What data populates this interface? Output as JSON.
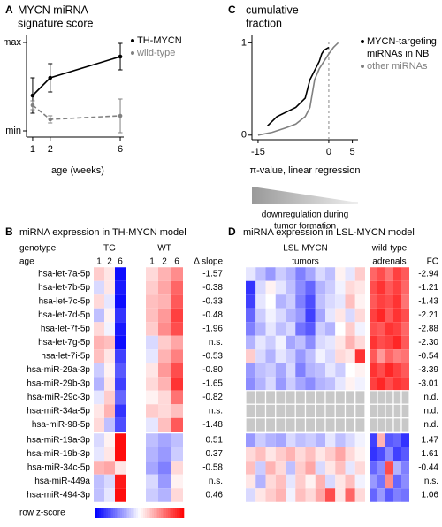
{
  "chart_data": [
    {
      "type": "line",
      "label": "A",
      "title": [
        "MYCN miRNA",
        "signature score"
      ],
      "xlabel": "age (weeks)",
      "x": [
        1,
        2,
        6
      ],
      "xlim": [
        0.65,
        6.2
      ],
      "xticks": [
        1,
        2,
        6
      ],
      "ylim": [
        -0.07,
        1.08
      ],
      "yticks": [
        {
          "value": 0,
          "label": "min"
        },
        {
          "value": 1,
          "label": "max"
        }
      ],
      "series": [
        {
          "name": [
            "TH-MYCN"
          ],
          "color": "#000000",
          "linestyle": "solid",
          "values": [
            0.4,
            0.6,
            0.84
          ],
          "errors": [
            0.2,
            0.16,
            0.15
          ]
        },
        {
          "name": [
            "wild-type"
          ],
          "color": "#808080",
          "linestyle": "dashed",
          "values": [
            0.29,
            0.13,
            0.17
          ],
          "errors": [
            0.05,
            0.04,
            0.19
          ]
        }
      ]
    },
    {
      "type": "line",
      "label": "C",
      "title": [
        "cumulative",
        "fraction"
      ],
      "xlabel": "π-value, linear regression",
      "xlim": [
        -16.3,
        6.2
      ],
      "xticks": [
        -15,
        0,
        5
      ],
      "ylim": [
        -0.05,
        1.08
      ],
      "yticks": [
        0,
        1
      ],
      "vline": 0,
      "annotation": [
        "downregulation during",
        "tumor formation"
      ],
      "series": [
        {
          "name": [
            "MYCN-targeting",
            "miRNAs in NB"
          ],
          "color": "#000000",
          "linestyle": "solid",
          "x": [
            -13,
            -11,
            -9,
            -7,
            -6,
            -5,
            -4.5,
            -4,
            -3,
            -2.5,
            -2,
            -1.5,
            -1,
            0
          ],
          "values": [
            0.1,
            0.2,
            0.25,
            0.3,
            0.35,
            0.4,
            0.5,
            0.6,
            0.7,
            0.75,
            0.8,
            0.88,
            0.92,
            0.95
          ]
        },
        {
          "name": [
            "other miRNAs"
          ],
          "color": "#808080",
          "linestyle": "solid",
          "x": [
            -15,
            -12,
            -9,
            -7,
            -5,
            -4,
            -3.5,
            -3,
            -2,
            -1,
            0,
            1,
            2
          ],
          "values": [
            0,
            0.03,
            0.08,
            0.12,
            0.2,
            0.3,
            0.45,
            0.6,
            0.72,
            0.8,
            0.88,
            0.95,
            1
          ]
        }
      ]
    }
  ],
  "heatmaps": [
    {
      "label": "B",
      "title": "miRNA expression in TH-MYCN model",
      "genotype_label": "genotype",
      "age_label": "age",
      "stat_label": "Δ slope",
      "groups": [
        {
          "name": [
            "TG"
          ],
          "ages": [
            "1",
            "2",
            "6"
          ]
        },
        {
          "name": [
            "WT"
          ],
          "ages": [
            "1",
            "2",
            "6"
          ]
        }
      ],
      "colorbar": {
        "label": "row z-score",
        "zlim": [
          -2,
          2
        ]
      },
      "blocks": [
        [
          {
            "name": "hsa-let-7a-5p",
            "values": [
              [
                0.4,
                0.2,
                -1.9
              ],
              [
                0.3,
                0.6,
                0.9
              ]
            ],
            "stat": "-1.57"
          },
          {
            "name": "hsa-let-7b-5p",
            "values": [
              [
                -0.3,
                0.2,
                -1.8
              ],
              [
                0.4,
                0.7,
                1.2
              ]
            ],
            "stat": "-0.38"
          },
          {
            "name": "hsa-let-7c-5p",
            "values": [
              [
                0.3,
                -0.2,
                -1.9
              ],
              [
                0.5,
                0.6,
                1.3
              ]
            ],
            "stat": "-0.33"
          },
          {
            "name": "hsa-let-7d-5p",
            "values": [
              [
                -0.5,
                0.1,
                -1.6
              ],
              [
                0.5,
                0.8,
                1.5
              ]
            ],
            "stat": "-0.48"
          },
          {
            "name": "hsa-let-7f-5p",
            "values": [
              [
                0.3,
                -0.1,
                -1.8
              ],
              [
                0.4,
                0.9,
                1.4
              ]
            ],
            "stat": "-1.96"
          },
          {
            "name": "hsa-let-7g-5p",
            "values": [
              [
                0.6,
                0.5,
                -1.9
              ],
              [
                -0.3,
                0.4,
                0.7
              ]
            ],
            "stat": "n.s."
          },
          {
            "name": "hsa-let-7i-5p",
            "values": [
              [
                0.5,
                0.2,
                -1.5
              ],
              [
                -0.2,
                0.6,
                1.0
              ]
            ],
            "stat": "-0.53"
          },
          {
            "name": "hsa-miR-29a-3p",
            "values": [
              [
                -0.4,
                0.1,
                -1.3
              ],
              [
                0.2,
                0.8,
                1.4
              ]
            ],
            "stat": "-0.80"
          },
          {
            "name": "hsa-miR-29b-3p",
            "values": [
              [
                -0.6,
                0.2,
                -1.5
              ],
              [
                0.3,
                0.6,
                1.6
              ]
            ],
            "stat": "-1.65"
          },
          {
            "name": "hsa-miR-29c-3p",
            "values": [
              [
                -0.2,
                0.4,
                -1.2
              ],
              [
                0.1,
                0.3,
                1.1
              ]
            ],
            "stat": "-0.82"
          },
          {
            "name": "hsa-miR-34a-5p",
            "values": [
              [
                0.2,
                0.6,
                -1.6
              ],
              [
                0.4,
                0.3,
                0.5
              ]
            ],
            "stat": "n.s."
          },
          {
            "name": "hsa-miR-98-5p",
            "values": [
              [
                0.3,
                -0.5,
                -1.4
              ],
              [
                -0.2,
                0.5,
                1.3
              ]
            ],
            "stat": "-1.48"
          }
        ],
        [
          {
            "name": "hsa-miR-19a-3p",
            "values": [
              [
                -0.3,
                0.1,
                1.9
              ],
              [
                -0.5,
                -0.7,
                -0.5
              ]
            ],
            "stat": "0.51"
          },
          {
            "name": "hsa-miR-19b-3p",
            "values": [
              [
                -0.2,
                0.2,
                1.9
              ],
              [
                -0.6,
                -0.8,
                -0.4
              ]
            ],
            "stat": "0.37"
          },
          {
            "name": "hsa-miR-34c-5p",
            "values": [
              [
                0.6,
                0.7,
                0.2
              ],
              [
                -0.7,
                -1.0,
                0.3
              ]
            ],
            "stat": "-0.58"
          },
          {
            "name": "hsa-miR-449a",
            "values": [
              [
                -0.5,
                -0.3,
                1.8
              ],
              [
                -0.3,
                -0.8,
                0.1
              ]
            ],
            "stat": "n.s."
          },
          {
            "name": "hsa-miR-494-3p",
            "values": [
              [
                -0.5,
                -0.2,
                1.9
              ],
              [
                -0.4,
                -0.6,
                0.3
              ]
            ],
            "stat": "0.46"
          }
        ]
      ]
    },
    {
      "label": "D",
      "title": "miRNA expression in LSL-MYCN model",
      "stat_label": "FC",
      "groups": [
        {
          "name": [
            "LSL-MYCN",
            "tumors"
          ]
        },
        {
          "name": [
            "wild-type",
            "adrenals"
          ]
        }
      ],
      "zlim": [
        -2,
        2
      ],
      "blocks": [
        [
          {
            "values": [
              [
                -0.2,
                -0.5,
                -0.8,
                -0.4,
                -0.6,
                -1.0,
                -0.7,
                -0.3,
                -0.5,
                0.1,
                -0.2,
                0.4
              ],
              [
                1.2,
                1.4,
                1.1,
                1.5,
                1.3
              ]
            ],
            "stat": "-2.94"
          },
          {
            "values": [
              [
                -1.6,
                -0.3,
                0.1,
                -0.2,
                -0.5,
                -0.9,
                -1.2,
                -0.6,
                -0.4,
                -0.1,
                0.3,
                0.2
              ],
              [
                1.4,
                1.6,
                1.3,
                1.5,
                1.2
              ]
            ],
            "stat": "-1.21"
          },
          {
            "values": [
              [
                -1.5,
                -0.2,
                0.0,
                -0.6,
                -0.4,
                -1.0,
                -1.4,
                -0.5,
                -0.3,
                -0.2,
                0.5,
                0.1
              ],
              [
                1.3,
                1.5,
                1.4,
                1.6,
                1.1
              ]
            ],
            "stat": "-1.43"
          },
          {
            "values": [
              [
                -1.2,
                -0.4,
                -0.1,
                -0.3,
                -0.6,
                -0.8,
                -1.5,
                -0.7,
                -0.2,
                0.2,
                -0.3,
                0.3
              ],
              [
                1.5,
                1.7,
                1.3,
                1.6,
                1.4
              ]
            ],
            "stat": "-2.21"
          },
          {
            "values": [
              [
                -1.0,
                -0.6,
                -0.2,
                -0.5,
                -0.3,
                -1.1,
                -1.3,
                -0.4,
                -0.6,
                0.0,
                0.4,
                -0.1
              ],
              [
                1.4,
                1.3,
                1.6,
                1.5,
                1.2
              ]
            ],
            "stat": "-2.88"
          },
          {
            "values": [
              [
                -0.6,
                -0.2,
                -0.4,
                -0.1,
                -0.7,
                -0.5,
                -0.9,
                -0.3,
                -0.2,
                0.2,
                0.6,
                0.3
              ],
              [
                1.6,
                1.4,
                1.5,
                1.7,
                1.3
              ]
            ],
            "stat": "-2.30"
          },
          {
            "values": [
              [
                0.4,
                -0.3,
                -0.6,
                -0.2,
                -0.4,
                -0.8,
                -0.5,
                -0.1,
                -0.3,
                0.3,
                0.2,
                1.6
              ],
              [
                1.3,
                0.8,
                1.2,
                1.0,
                1.1
              ]
            ],
            "stat": "-0.54"
          },
          {
            "values": [
              [
                -0.8,
                -0.5,
                -0.4,
                -0.7,
                -0.3,
                -1.0,
                -0.6,
                -0.5,
                -0.2,
                -0.4,
                0.0,
                0.1
              ],
              [
                1.6,
                1.4,
                1.7,
                1.5,
                1.3
              ]
            ],
            "stat": "-3.39"
          },
          {
            "values": [
              [
                -0.9,
                -0.6,
                -0.3,
                -0.8,
                -0.4,
                -0.7,
                -0.9,
                -0.6,
                -0.5,
                -0.2,
                0.1,
                -0.1
              ],
              [
                1.5,
                1.7,
                1.4,
                1.6,
                1.5
              ]
            ],
            "stat": "-3.01"
          },
          {
            "values": [
              [
                null,
                null,
                null,
                null,
                null,
                null,
                null,
                null,
                null,
                null,
                null,
                null
              ],
              [
                null,
                null,
                null,
                null,
                null
              ]
            ],
            "stat": "n.d."
          },
          {
            "values": [
              [
                null,
                null,
                null,
                null,
                null,
                null,
                null,
                null,
                null,
                null,
                null,
                null
              ],
              [
                null,
                null,
                null,
                null,
                null
              ]
            ],
            "stat": "n.d."
          },
          {
            "values": [
              [
                null,
                null,
                null,
                null,
                null,
                null,
                null,
                null,
                null,
                null,
                null,
                null
              ],
              [
                null,
                null,
                null,
                null,
                null
              ]
            ],
            "stat": "n.d."
          }
        ],
        [
          {
            "values": [
              [
                -0.8,
                -0.4,
                -0.6,
                -0.7,
                -0.3,
                -0.5,
                -0.4,
                -0.6,
                -0.2,
                -0.5,
                -0.3,
                -0.1
              ],
              [
                -1.5,
                0.6,
                -1.3,
                -1.2,
                -1.6
              ]
            ],
            "stat": "1.47"
          },
          {
            "values": [
              [
                0.3,
                0.5,
                0.2,
                0.4,
                0.6,
                0.3,
                0.5,
                0.2,
                0.4,
                0.7,
                0.3,
                0.1
              ],
              [
                -1.6,
                -1.4,
                -0.9,
                -1.5,
                -1.3
              ]
            ],
            "stat": "1.61"
          },
          {
            "values": [
              [
                0.5,
                -0.4,
                0.6,
                0.3,
                -0.5,
                0.4,
                0.7,
                -0.3,
                0.2,
                0.5,
                -0.2,
                0.3
              ],
              [
                -1.2,
                -0.9,
                1.4,
                -0.6,
                -1.0
              ]
            ],
            "stat": "-0.44"
          },
          {
            "values": [
              [
                0.2,
                -0.6,
                0.3,
                0.5,
                -0.2,
                0.4,
                0.1,
                0.6,
                -0.3,
                0.2,
                0.5,
                -0.1
              ],
              [
                -0.8,
                -1.1,
                0.9,
                -1.2,
                -0.9
              ]
            ],
            "stat": "n.s."
          },
          {
            "values": [
              [
                -0.3,
                0.2,
                0.4,
                0.6,
                -0.1,
                0.5,
                0.3,
                0.7,
                1.4,
                0.2,
                1.2,
                0.3
              ],
              [
                -1.2,
                -0.8,
                -1.3,
                -1.0,
                -1.1
              ]
            ],
            "stat": "1.06"
          }
        ]
      ]
    }
  ]
}
